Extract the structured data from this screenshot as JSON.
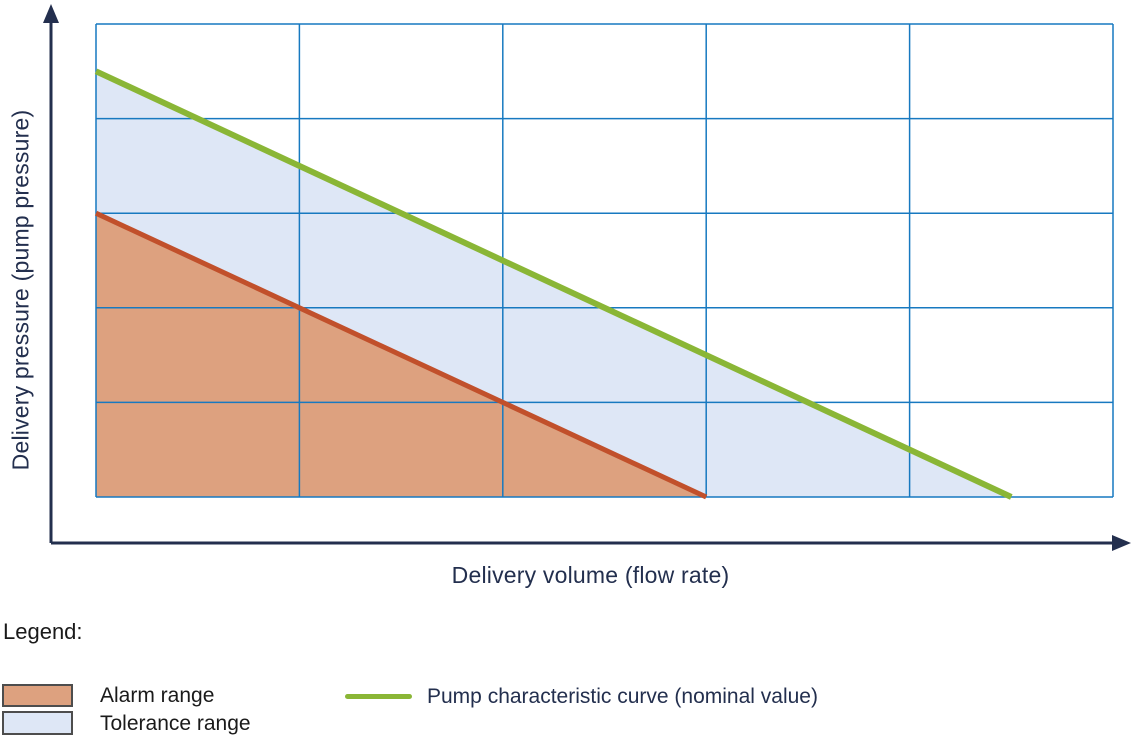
{
  "axes": {
    "x_label": "Delivery volume (flow rate)",
    "y_label": "Delivery pressure (pump pressure)",
    "axis_color": "#232f4e",
    "grid_color": "#1779c0"
  },
  "legend": {
    "title": "Legend:",
    "items": [
      {
        "label": "Alarm range",
        "swatch_color": "#dda17f",
        "swatch_border": "#4d4d4d"
      },
      {
        "label": "Tolerance range",
        "swatch_color": "#dee7f6",
        "swatch_border": "#4d4d4d"
      },
      {
        "label": "Pump characteristic curve (nominal value)",
        "line_color": "#8ab636"
      }
    ]
  },
  "chart_data": {
    "type": "area",
    "title": "",
    "xlabel": "Delivery volume (flow rate)",
    "ylabel": "Delivery pressure (pump pressure)",
    "grid": true,
    "axis_tick_labels": "none (qualitative diagram)",
    "units_note": "coordinates in grid units, origin bottom-left, 5x5 grid cells",
    "xlim": [
      0,
      5
    ],
    "ylim": [
      0,
      5
    ],
    "series": [
      {
        "name": "Pump characteristic curve (nominal value)",
        "type": "line",
        "color": "#8ab636",
        "points": [
          [
            0,
            4.5
          ],
          [
            4.5,
            0
          ]
        ]
      },
      {
        "name": "Alarm range upper boundary",
        "type": "line",
        "color": "#c1502b",
        "points": [
          [
            0,
            3
          ],
          [
            3,
            0
          ]
        ]
      }
    ],
    "regions": [
      {
        "name": "Tolerance range",
        "color": "#dee7f6",
        "polygon": [
          [
            0,
            4.5
          ],
          [
            4.5,
            0
          ],
          [
            3,
            0
          ],
          [
            0,
            3
          ]
        ]
      },
      {
        "name": "Alarm range",
        "color": "#dda17f",
        "polygon": [
          [
            0,
            3
          ],
          [
            3,
            0
          ],
          [
            0,
            0
          ]
        ]
      }
    ],
    "legend_position": "below chart",
    "legend_entries": [
      "Alarm range",
      "Tolerance range",
      "Pump characteristic curve (nominal value)"
    ]
  }
}
